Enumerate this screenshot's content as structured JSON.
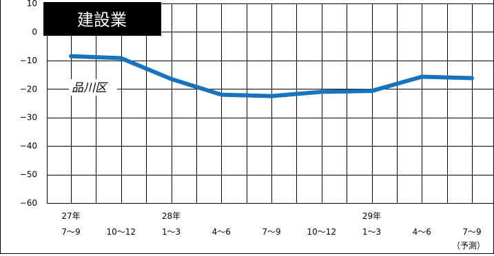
{
  "chart_data": {
    "type": "line",
    "title": "建設業",
    "annotations": [
      "品川区"
    ],
    "ylim": [
      -60,
      10
    ],
    "yticks": [
      10,
      0,
      -10,
      -20,
      -30,
      -40,
      -50,
      -60
    ],
    "ytick_labels": [
      "10",
      "0",
      "−10",
      "−20",
      "−30",
      "−40",
      "−50",
      "−60"
    ],
    "categories": [
      {
        "year": "27年",
        "period": "7～9",
        "note": ""
      },
      {
        "year": "",
        "period": "10～12",
        "note": ""
      },
      {
        "year": "28年",
        "period": "1～3",
        "note": ""
      },
      {
        "year": "",
        "period": "4～6",
        "note": ""
      },
      {
        "year": "",
        "period": "7～9",
        "note": ""
      },
      {
        "year": "",
        "period": "10～12",
        "note": ""
      },
      {
        "year": "29年",
        "period": "1～3",
        "note": ""
      },
      {
        "year": "",
        "period": "4～6",
        "note": ""
      },
      {
        "year": "",
        "period": "7～9",
        "note": "（予測）"
      }
    ],
    "series": [
      {
        "values": [
          -8.5,
          -9.2,
          -16.5,
          -22.0,
          -22.5,
          -21.0,
          -20.7,
          -15.7,
          -16.2
        ]
      }
    ],
    "grid": true,
    "colors": {
      "line": "#1873be",
      "title_bg": "#000000",
      "title_text": "#ffffff"
    }
  }
}
